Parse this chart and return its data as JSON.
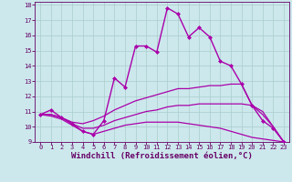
{
  "background_color": "#cce8ec",
  "grid_color": "#aacccc",
  "line_color": "#aa00aa",
  "tick_color": "#660066",
  "xlabel": "Windchill (Refroidissement éolien,°C)",
  "xlim": [
    -0.5,
    23.5
  ],
  "ylim": [
    9,
    18.2
  ],
  "xticks": [
    0,
    1,
    2,
    3,
    4,
    5,
    6,
    7,
    8,
    9,
    10,
    11,
    12,
    13,
    14,
    15,
    16,
    17,
    18,
    19,
    20,
    21,
    22,
    23
  ],
  "yticks": [
    9,
    10,
    11,
    12,
    13,
    14,
    15,
    16,
    17,
    18
  ],
  "lines": [
    {
      "x": [
        0,
        1,
        2,
        3,
        4,
        5,
        6,
        7,
        8,
        9,
        10,
        11,
        12,
        13,
        14,
        15,
        16,
        17,
        18,
        19,
        20,
        21,
        22,
        23
      ],
      "y": [
        10.8,
        11.1,
        10.6,
        10.2,
        9.7,
        9.5,
        10.4,
        13.2,
        12.6,
        15.3,
        15.3,
        14.9,
        17.8,
        17.4,
        15.9,
        16.5,
        15.9,
        14.3,
        14.0,
        12.8,
        11.4,
        10.4,
        9.9,
        9.0
      ],
      "marker": "D",
      "markersize": 2.0,
      "linewidth": 1.0
    },
    {
      "x": [
        0,
        1,
        2,
        3,
        4,
        5,
        6,
        7,
        8,
        9,
        10,
        11,
        12,
        13,
        14,
        15,
        16,
        17,
        18,
        19,
        20,
        21,
        22,
        23
      ],
      "y": [
        10.8,
        10.8,
        10.6,
        10.3,
        10.2,
        10.4,
        10.7,
        11.1,
        11.4,
        11.7,
        11.9,
        12.1,
        12.3,
        12.5,
        12.5,
        12.6,
        12.7,
        12.7,
        12.8,
        12.8,
        11.4,
        11.0,
        10.0,
        9.0
      ],
      "marker": null,
      "markersize": 0,
      "linewidth": 0.9
    },
    {
      "x": [
        0,
        1,
        2,
        3,
        4,
        5,
        6,
        7,
        8,
        9,
        10,
        11,
        12,
        13,
        14,
        15,
        16,
        17,
        18,
        19,
        20,
        21,
        22,
        23
      ],
      "y": [
        10.8,
        10.8,
        10.6,
        10.2,
        9.9,
        9.9,
        10.1,
        10.4,
        10.6,
        10.8,
        11.0,
        11.1,
        11.3,
        11.4,
        11.4,
        11.5,
        11.5,
        11.5,
        11.5,
        11.5,
        11.4,
        10.8,
        10.0,
        9.0
      ],
      "marker": null,
      "markersize": 0,
      "linewidth": 0.9
    },
    {
      "x": [
        0,
        1,
        2,
        3,
        4,
        5,
        6,
        7,
        8,
        9,
        10,
        11,
        12,
        13,
        14,
        15,
        16,
        17,
        18,
        19,
        20,
        21,
        22,
        23
      ],
      "y": [
        10.8,
        10.7,
        10.5,
        10.1,
        9.7,
        9.5,
        9.7,
        9.9,
        10.1,
        10.2,
        10.3,
        10.3,
        10.3,
        10.3,
        10.2,
        10.1,
        10.0,
        9.9,
        9.7,
        9.5,
        9.3,
        9.2,
        9.1,
        9.0
      ],
      "marker": null,
      "markersize": 0,
      "linewidth": 0.9
    }
  ]
}
